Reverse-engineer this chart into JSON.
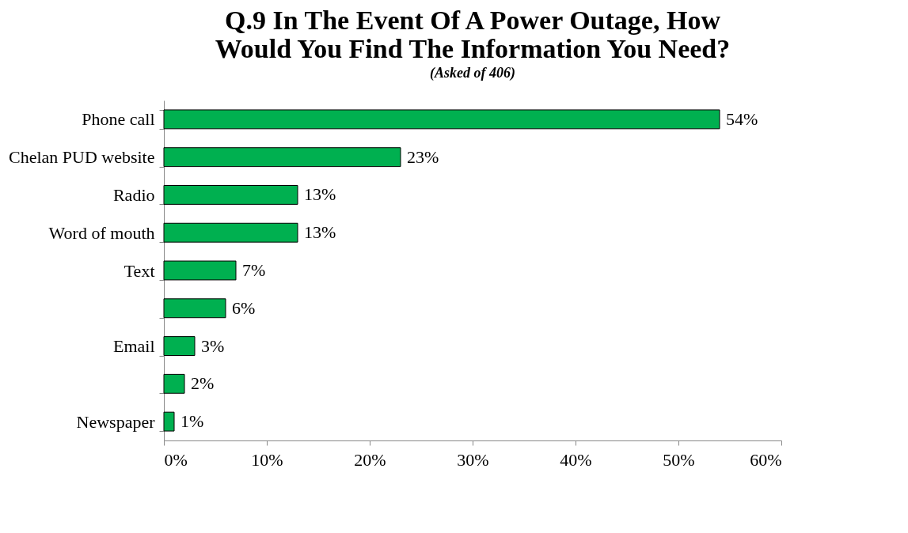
{
  "chart_data": {
    "type": "bar",
    "orientation": "horizontal",
    "title": "Q.9 In The Event Of A Power Outage, How Would You Find The Information You Need?",
    "subtitle": "(Asked of 406)",
    "categories": [
      "Phone call",
      "Chelan PUD website",
      "Radio",
      "Word of mouth",
      "Text",
      null,
      "Email",
      null,
      "Newspaper"
    ],
    "values": [
      54,
      23,
      13,
      13,
      7,
      6,
      3,
      2,
      1
    ],
    "value_labels": [
      "54%",
      "23%",
      "13%",
      "13%",
      "7%",
      "6%",
      "3%",
      "2%",
      "1%"
    ],
    "color": "#00b050",
    "xlim": [
      0,
      60
    ],
    "xticks": [
      {
        "value": 0,
        "label": "0%"
      },
      {
        "value": 10,
        "label": "10%"
      },
      {
        "value": 20,
        "label": "20%"
      },
      {
        "value": 30,
        "label": "30%"
      },
      {
        "value": 40,
        "label": "40%"
      },
      {
        "value": 50,
        "label": "50%"
      },
      {
        "value": 60,
        "label": "60%"
      }
    ],
    "grid": false
  }
}
